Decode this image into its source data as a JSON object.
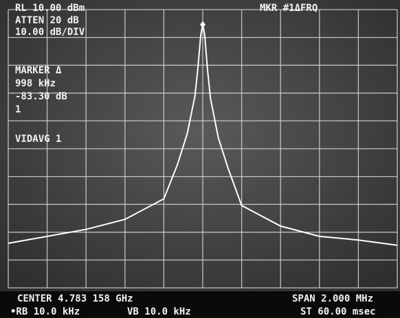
{
  "header": {
    "ref_level": "RL 10.00 dBm",
    "atten": "ATTEN 20 dB",
    "scale": "10.00 dB/DIV",
    "marker_mode": "MKR #1ΔFRQ"
  },
  "marker": {
    "title": "MARKER Δ",
    "freq": "998 kHz",
    "level": "-83.30 dB",
    "index": "1"
  },
  "vid_avg": "VIDAVG 1",
  "footer": {
    "center": "CENTER 4.783 158 GHz",
    "span": "SPAN 2.000 MHz",
    "rbw": "•RB 10.0 kHz",
    "vbw": "VB 10.0 kHz",
    "sweep": "ST 60.00 msec"
  },
  "trace": {
    "xlim": [
      -1,
      1
    ],
    "ylim": [
      -90,
      10
    ],
    "x": [
      -1,
      -0.8,
      -0.6,
      -0.4,
      -0.2,
      -0.13,
      -0.08,
      -0.04,
      -0.025,
      -0.01,
      0,
      0.01,
      0.025,
      0.04,
      0.08,
      0.13,
      0.2,
      0.4,
      0.6,
      0.8,
      1
    ],
    "y": [
      -74,
      -71.5,
      -69,
      -65.4,
      -58,
      -45.7,
      -34.6,
      -21,
      -11,
      1,
      4.6,
      1,
      -12,
      -22,
      -36,
      -47,
      -60.4,
      -67.8,
      -71.5,
      -72.8,
      -74.7
    ]
  }
}
